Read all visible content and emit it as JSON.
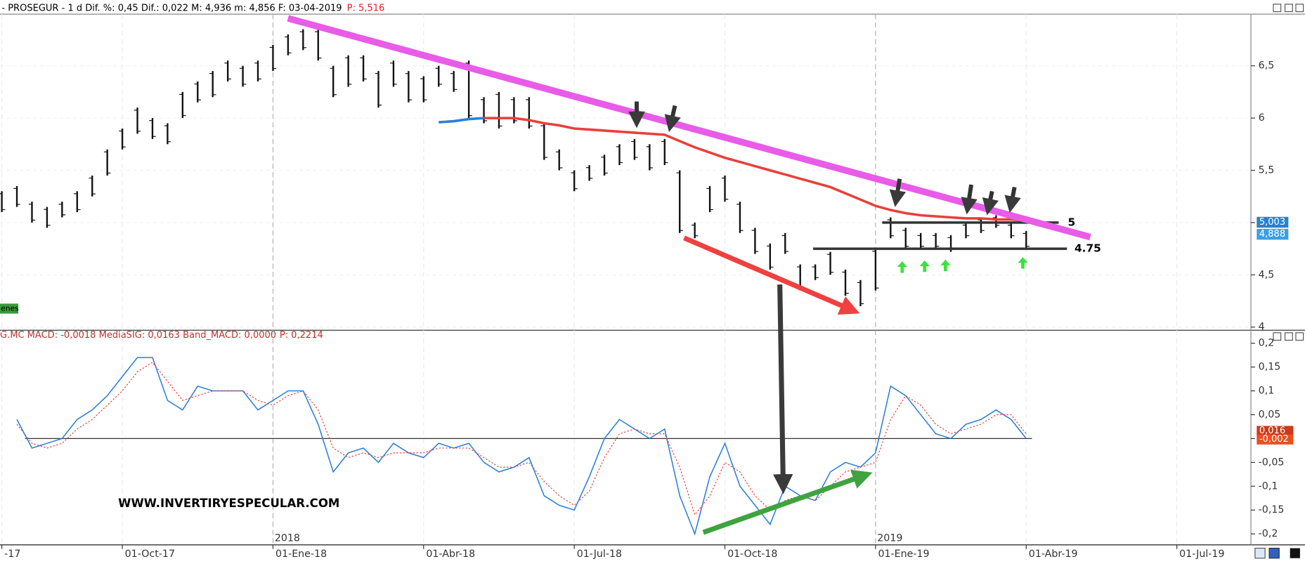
{
  "chart_data": [
    {
      "type": "range",
      "header": "- PROSEGUR -  1 d Dif. %: 0,45 Dif.: 0,022 M: 4,936 m: 4,856 F: 03-04-2019",
      "header_price": "P: 5,516",
      "categories": [
        "-17",
        null,
        null,
        null,
        null,
        null,
        null,
        null,
        "01-Oct-17",
        null,
        null,
        null,
        null,
        null,
        null,
        null,
        null,
        null,
        "01-Ene-18",
        null,
        null,
        null,
        null,
        null,
        null,
        null,
        null,
        null,
        "01-Abr-18",
        null,
        null,
        null,
        null,
        null,
        null,
        null,
        null,
        null,
        "01-Jul-18",
        null,
        null,
        null,
        null,
        null,
        null,
        null,
        null,
        null,
        "01-Oct-18",
        null,
        null,
        null,
        null,
        null,
        null,
        null,
        null,
        null,
        "01-Ene-19",
        null,
        null,
        null,
        null,
        null,
        null,
        null,
        null,
        null,
        "01-Abr-19",
        null,
        null,
        null,
        null,
        null,
        null,
        null,
        null,
        null,
        "01-Jul-19",
        null,
        null,
        null,
        null
      ],
      "high": [
        5.3,
        5.35,
        5.2,
        5.15,
        5.2,
        5.3,
        5.45,
        5.7,
        5.9,
        6.1,
        6.0,
        5.95,
        6.25,
        6.35,
        6.45,
        6.55,
        6.5,
        6.55,
        6.7,
        6.8,
        6.85,
        6.85,
        6.5,
        6.6,
        6.6,
        6.45,
        6.55,
        6.45,
        6.4,
        6.5,
        6.45,
        6.55,
        6.2,
        6.25,
        6.2,
        6.2,
        5.95,
        5.7,
        5.5,
        5.55,
        5.65,
        5.75,
        5.8,
        5.75,
        5.8,
        5.5,
        5.0,
        5.35,
        5.45,
        5.2,
        4.95,
        4.8,
        4.9,
        4.6,
        4.6,
        4.72,
        4.55,
        4.45,
        4.75,
        5.05,
        4.95,
        4.9,
        4.9,
        4.88,
        5.0,
        5.05,
        5.07,
        5.0,
        4.92,
        null,
        null,
        null,
        null,
        null,
        null,
        null,
        null,
        null,
        null,
        null,
        null,
        null,
        null
      ],
      "low": [
        5.1,
        5.15,
        5.0,
        4.95,
        5.05,
        5.1,
        5.25,
        5.45,
        5.7,
        5.85,
        5.8,
        5.75,
        6.0,
        6.15,
        6.2,
        6.35,
        6.3,
        6.35,
        6.45,
        6.6,
        6.65,
        6.55,
        6.2,
        6.3,
        6.35,
        6.1,
        6.3,
        6.15,
        6.15,
        6.3,
        6.25,
        6.0,
        5.95,
        5.9,
        5.95,
        5.9,
        5.6,
        5.5,
        5.3,
        5.4,
        5.45,
        5.55,
        5.6,
        5.5,
        5.55,
        4.9,
        4.85,
        5.1,
        5.2,
        4.9,
        4.7,
        4.55,
        4.7,
        4.35,
        4.45,
        4.5,
        4.3,
        4.2,
        4.35,
        4.85,
        4.75,
        4.75,
        4.75,
        4.72,
        4.85,
        4.9,
        4.95,
        4.85,
        4.75,
        null,
        null,
        null,
        null,
        null,
        null,
        null,
        null,
        null,
        null,
        null,
        null,
        null,
        null
      ],
      "color": "#111111",
      "overlays": [
        {
          "color": "#e8403a",
          "values": [
            null,
            null,
            null,
            null,
            null,
            null,
            null,
            null,
            null,
            null,
            null,
            null,
            null,
            null,
            null,
            null,
            null,
            null,
            null,
            null,
            null,
            null,
            null,
            null,
            null,
            null,
            null,
            null,
            null,
            null,
            null,
            null,
            6.0,
            6.0,
            6.0,
            5.98,
            5.95,
            5.93,
            5.9,
            5.89,
            5.88,
            5.87,
            5.86,
            5.85,
            5.84,
            5.78,
            5.72,
            5.67,
            5.62,
            5.58,
            5.54,
            5.5,
            5.46,
            5.42,
            5.38,
            5.34,
            5.28,
            5.22,
            5.16,
            5.12,
            5.09,
            5.07,
            5.06,
            5.05,
            5.04,
            5.04,
            5.03,
            5.03,
            5.02,
            null,
            null,
            null,
            null,
            null,
            null,
            null,
            null,
            null,
            null,
            null,
            null,
            null,
            null
          ]
        },
        {
          "color": "#2a7fd8",
          "values": [
            null,
            null,
            null,
            null,
            null,
            null,
            null,
            null,
            null,
            null,
            null,
            null,
            null,
            null,
            null,
            null,
            null,
            null,
            null,
            null,
            null,
            null,
            null,
            null,
            null,
            null,
            null,
            null,
            null,
            5.96,
            5.97,
            5.99,
            6.0,
            null,
            null,
            null,
            null,
            null,
            null,
            null,
            null,
            null,
            null,
            null,
            null,
            null,
            null,
            null,
            null,
            null,
            null,
            null,
            null,
            null,
            null,
            null,
            null,
            null,
            null,
            null,
            null,
            null,
            null,
            null,
            null,
            null,
            null,
            null,
            null,
            null,
            null,
            null,
            null,
            null,
            null,
            null,
            null,
            null,
            null,
            null,
            null,
            null,
            null
          ]
        }
      ],
      "levels": [
        5,
        4.75
      ],
      "price_tags": [
        {
          "value": 5.003,
          "label": "5,003"
        },
        {
          "value": 4.888,
          "label": "4,888"
        }
      ],
      "tag": "enes",
      "ylim": [
        3.97,
        7.01
      ],
      "yticks": [
        4,
        {
          "value": 4.5,
          "label": "4,5"
        },
        5,
        {
          "value": 5.5,
          "label": "5,5"
        },
        6,
        {
          "value": 6.5,
          "label": "6,5"
        }
      ],
      "grid": true
    },
    {
      "type": "line",
      "header": "G.MC MACD: -0,0018 MediaSIG: 0,0163 Band_MACD: 0,0000",
      "header_price": "P: 0,2214",
      "series": [
        {
          "color": "#2a7fd8",
          "values": [
            null,
            0.04,
            -0.02,
            -0.01,
            0.0,
            0.04,
            0.06,
            0.09,
            0.13,
            0.17,
            0.17,
            0.08,
            0.06,
            0.11,
            0.1,
            0.1,
            0.1,
            0.06,
            0.08,
            0.1,
            0.1,
            0.03,
            -0.07,
            -0.03,
            -0.02,
            -0.05,
            -0.01,
            -0.03,
            -0.04,
            -0.01,
            -0.02,
            -0.01,
            -0.05,
            -0.07,
            -0.06,
            -0.04,
            -0.12,
            -0.14,
            -0.15,
            -0.08,
            0.0,
            0.04,
            0.02,
            0.0,
            0.02,
            -0.12,
            -0.2,
            -0.08,
            -0.01,
            -0.1,
            -0.14,
            -0.18,
            -0.1,
            -0.12,
            -0.13,
            -0.07,
            -0.05,
            -0.06,
            -0.03,
            0.11,
            0.09,
            0.05,
            0.01,
            0.0,
            0.03,
            0.04,
            0.06,
            0.04,
            0.0,
            null,
            null,
            null,
            null,
            null,
            null,
            null,
            null,
            null,
            null,
            null,
            null,
            null,
            null
          ]
        },
        {
          "color": "#e8403a",
          "dashed": true,
          "values": [
            null,
            0.03,
            -0.01,
            -0.02,
            -0.01,
            0.02,
            0.04,
            0.07,
            0.1,
            0.14,
            0.16,
            0.12,
            0.08,
            0.09,
            0.1,
            0.1,
            0.1,
            0.08,
            0.07,
            0.09,
            0.1,
            0.06,
            -0.02,
            -0.04,
            -0.03,
            -0.04,
            -0.03,
            -0.03,
            -0.03,
            -0.02,
            -0.02,
            -0.02,
            -0.04,
            -0.06,
            -0.06,
            -0.05,
            -0.09,
            -0.12,
            -0.14,
            -0.11,
            -0.04,
            0.01,
            0.02,
            0.01,
            0.01,
            -0.06,
            -0.16,
            -0.12,
            -0.05,
            -0.07,
            -0.12,
            -0.15,
            -0.13,
            -0.12,
            -0.13,
            -0.1,
            -0.07,
            -0.06,
            -0.05,
            0.04,
            0.09,
            0.07,
            0.03,
            0.01,
            0.02,
            0.03,
            0.05,
            0.05,
            0.01,
            null,
            null,
            null,
            null,
            null,
            null,
            null,
            null,
            null,
            null,
            null,
            null,
            null,
            null
          ]
        }
      ],
      "value_tags": [
        {
          "value": 0.016,
          "label": "0,016"
        },
        {
          "value": -0.002,
          "label": "-0,002"
        }
      ],
      "year_labels": [
        "2018",
        "2019"
      ],
      "watermark": "WWW.INVERTIRYESPECULAR.COM",
      "ylim": [
        -0.223,
        0.208
      ],
      "yticks": [
        {
          "value": 0.2,
          "label": "0,2"
        },
        {
          "value": 0.15,
          "label": "0,15"
        },
        {
          "value": 0.1,
          "label": "0,1"
        },
        {
          "value": 0.05,
          "label": "0,05"
        },
        0,
        {
          "value": -0.05,
          "label": "-0,05"
        },
        {
          "value": -0.1,
          "label": "-0,1"
        },
        {
          "value": -0.15,
          "label": "-0,15"
        },
        {
          "value": -0.2,
          "label": "-0,2"
        }
      ]
    }
  ]
}
